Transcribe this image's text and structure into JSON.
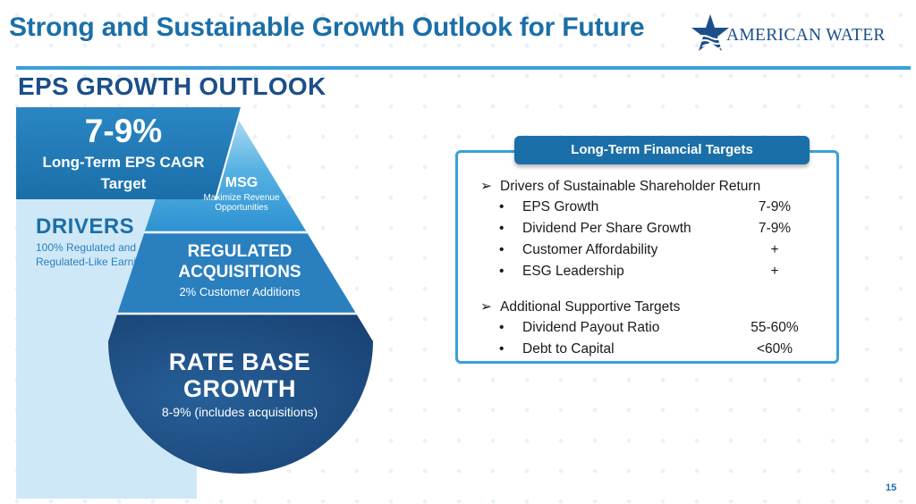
{
  "title": "Strong and Sustainable Growth Outlook for Future",
  "logo": {
    "text": "AMERICAN WATER",
    "icon": "star-water-icon"
  },
  "subtitle": "EPS GROWTH OUTLOOK",
  "diagram": {
    "cagr": {
      "value": "7-9%",
      "label": "Long-Term EPS CAGR Target"
    },
    "msg": {
      "title": "MSG",
      "subtitle": "Maximize Revenue Opportunities"
    },
    "drivers": {
      "title": "DRIVERS",
      "subtitle": "100% Regulated and Regulated-Like Earnings"
    },
    "regulated": {
      "title": "REGULATED ACQUISITIONS",
      "subtitle": "2% Customer Additions"
    },
    "rate_base": {
      "title": "RATE BASE GROWTH",
      "subtitle": "8-9% (includes acquisitions)"
    }
  },
  "targets": {
    "header": "Long-Term Financial Targets",
    "arrow_glyph": "➢",
    "bullet_glyph": "•",
    "groups": [
      {
        "heading": "Drivers of Sustainable Shareholder Return",
        "items": [
          {
            "label": "EPS Growth",
            "value": "7-9%"
          },
          {
            "label": "Dividend Per Share Growth",
            "value": "7-9%"
          },
          {
            "label": "Customer Affordability",
            "value": "+"
          },
          {
            "label": "ESG Leadership",
            "value": "+"
          }
        ]
      },
      {
        "heading": "Additional Supportive Targets",
        "items": [
          {
            "label": "Dividend Payout Ratio",
            "value": "55-60%"
          },
          {
            "label": "Debt to Capital",
            "value": "<60%"
          }
        ]
      }
    ]
  },
  "page_number": "15",
  "colors": {
    "title_blue": "#1b6fa8",
    "navy": "#1b4f8a",
    "accent_blue": "#3aa0d8",
    "light_blue": "#cfe8f7",
    "drop_mid": "#2a7fbf",
    "drop_dark": "#1b4f8a"
  }
}
